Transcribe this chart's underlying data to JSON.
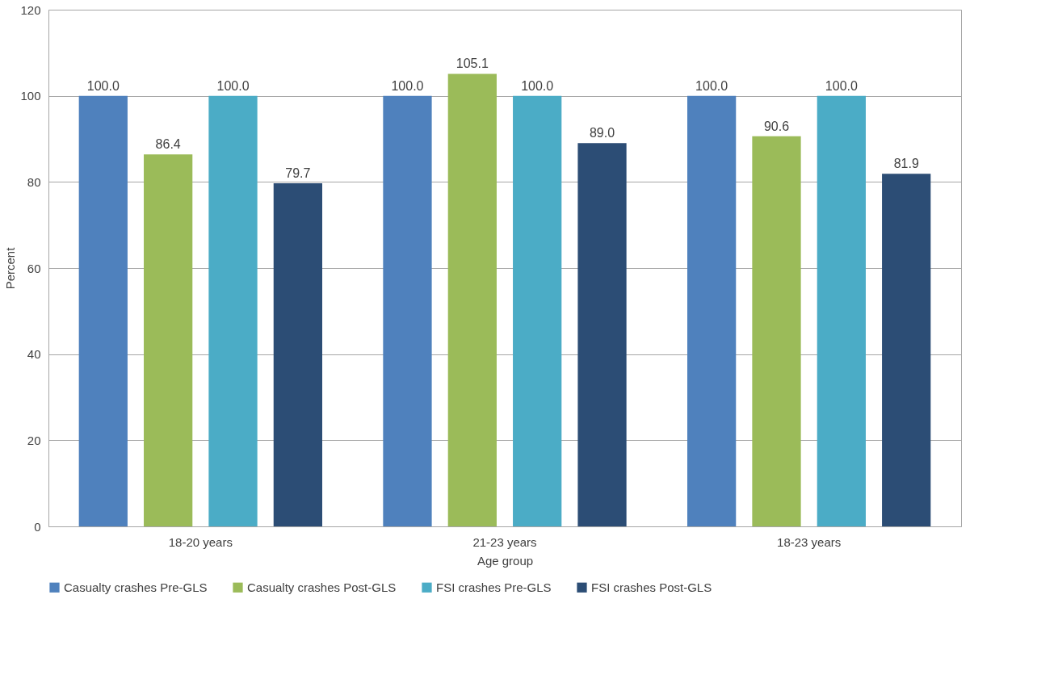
{
  "chart_data": {
    "type": "bar",
    "xlabel": "Age group",
    "ylabel": "Percent",
    "categories": [
      "18-20 years",
      "21-23 years",
      "18-23 years"
    ],
    "series": [
      {
        "name": "Casualty crashes Pre-GLS",
        "color": "#4f81bd",
        "values": [
          100,
          100,
          100
        ],
        "value_labels": [
          "100.0",
          "100.0",
          "100.0"
        ]
      },
      {
        "name": "Casualty crashes Post-GLS",
        "color": "#9bbb59",
        "values": [
          86.4,
          105.1,
          90.6
        ],
        "value_labels": [
          "86.4",
          "105.1",
          "90.6"
        ]
      },
      {
        "name": "FSI crashes Pre-GLS",
        "color": "#4bacc6",
        "values": [
          100,
          100,
          100
        ],
        "value_labels": [
          "100.0",
          "100.0",
          "100.0"
        ]
      },
      {
        "name": "FSI crashes Post-GLS",
        "color": "#2c4d75",
        "values": [
          79.7,
          89,
          81.9
        ],
        "value_labels": [
          "79.7",
          "89.0",
          "81.9"
        ]
      }
    ],
    "ylim": [
      0,
      120
    ],
    "yticks": [
      0,
      20,
      40,
      60,
      80,
      100,
      120
    ],
    "grid": "y",
    "legend": "bottom"
  }
}
